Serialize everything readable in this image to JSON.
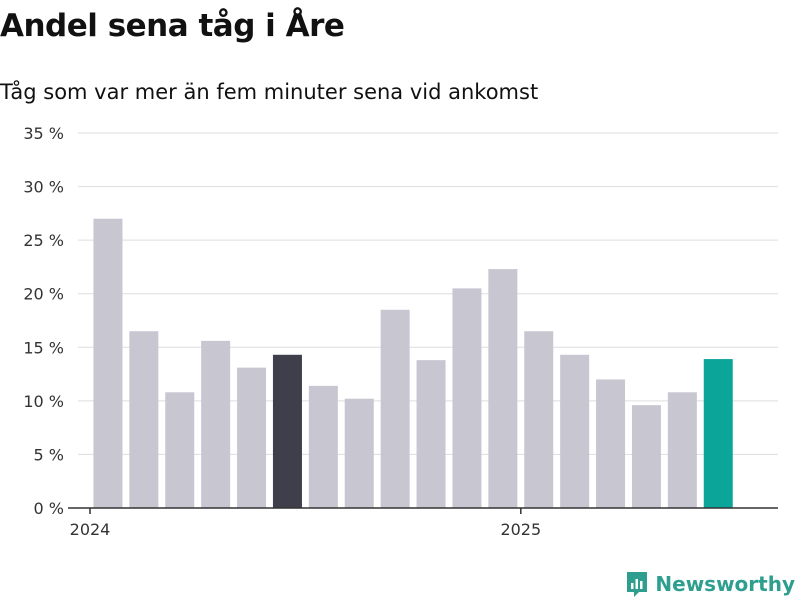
{
  "title": "Andel sena tåg i Åre",
  "subtitle": "Tåg som var mer än fem minuter sena vid ankomst",
  "brand": "Newsworthy",
  "colors": {
    "bar": "#c8c7d1",
    "highlight_dark": "#3f3e4b",
    "highlight_accent": "#0ba59a",
    "grid": "#dddddd",
    "axis": "#333333",
    "brand": "#2e9e8f"
  },
  "chart_data": {
    "type": "bar",
    "ylabel": "",
    "xlabel": "",
    "ylim": [
      0,
      35
    ],
    "y_ticks": [
      0,
      5,
      10,
      15,
      20,
      25,
      30,
      35
    ],
    "y_tick_labels": [
      "0 %",
      "5 %",
      "10 %",
      "15 %",
      "20 %",
      "25 %",
      "30 %",
      "35 %"
    ],
    "x_tick_labels": [
      "2024",
      "2025"
    ],
    "x_tick_categories": [
      "2024-01",
      "2025-01"
    ],
    "categories": [
      "2024-01",
      "2024-02",
      "2024-03",
      "2024-04",
      "2024-05",
      "2024-06",
      "2024-07",
      "2024-08",
      "2024-09",
      "2024-10",
      "2024-11",
      "2024-12",
      "2025-01",
      "2025-02",
      "2025-03",
      "2025-04",
      "2025-05",
      "2025-06"
    ],
    "values": [
      27.0,
      16.5,
      10.8,
      15.6,
      13.1,
      14.3,
      11.4,
      10.2,
      18.5,
      13.8,
      20.5,
      22.3,
      16.5,
      14.3,
      12.0,
      9.6,
      10.8,
      13.9
    ],
    "highlight": {
      "2024-06": "highlight_dark",
      "2025-06": "highlight_accent"
    },
    "grid": true,
    "legend": "none"
  }
}
